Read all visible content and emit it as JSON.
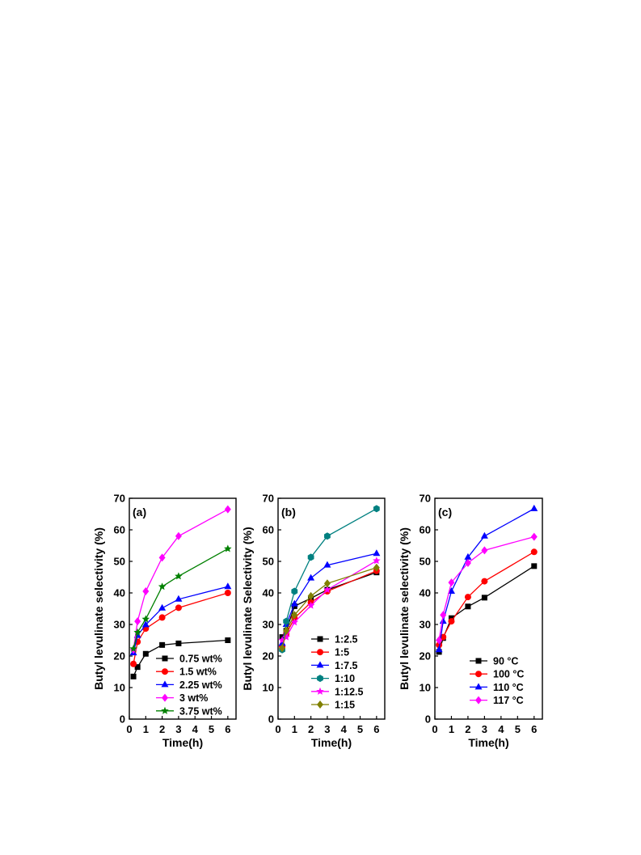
{
  "chart_data": [
    {
      "type": "line",
      "panel_label": "(a)",
      "xlabel": "Time(h)",
      "ylabel": "Butyl levulinate selectivity (%)",
      "xlim": [
        0,
        6.5
      ],
      "ylim": [
        0,
        70
      ],
      "xticks": [
        0,
        1,
        2,
        3,
        4,
        5,
        6
      ],
      "yticks": [
        0,
        10,
        20,
        30,
        40,
        50,
        60,
        70
      ],
      "legend_position": "bottom-right",
      "series": [
        {
          "name": "0.75 wt%",
          "color": "#000000",
          "marker": "square",
          "x": [
            0.25,
            0.5,
            1,
            2,
            3,
            6
          ],
          "y": [
            13.5,
            16.5,
            20.7,
            23.5,
            24.0,
            25.0
          ]
        },
        {
          "name": "1.5 wt%",
          "color": "#ff0000",
          "marker": "circle",
          "x": [
            0.25,
            0.5,
            1,
            2,
            3,
            6
          ],
          "y": [
            17.5,
            24.5,
            28.7,
            32.2,
            35.3,
            40.0
          ]
        },
        {
          "name": "2.25 wt%",
          "color": "#0000ff",
          "marker": "triangle",
          "x": [
            0.25,
            0.5,
            1,
            2,
            3,
            6
          ],
          "y": [
            21.0,
            26.5,
            29.9,
            35.2,
            38.0,
            42.0
          ]
        },
        {
          "name": "3 wt%",
          "color": "#ff00ff",
          "marker": "diamond",
          "x": [
            0.25,
            0.5,
            1,
            2,
            3,
            6
          ],
          "y": [
            22.0,
            31.0,
            40.5,
            51.2,
            58.0,
            66.5
          ]
        },
        {
          "name": "3.75 wt%",
          "color": "#008000",
          "marker": "star",
          "x": [
            0.25,
            0.5,
            1,
            2,
            3,
            6
          ],
          "y": [
            22.3,
            27.5,
            31.7,
            42.0,
            45.3,
            54.0
          ]
        }
      ]
    },
    {
      "type": "line",
      "panel_label": "(b)",
      "xlabel": "Time(h)",
      "ylabel": "Butyl levulinate Selectivity (%)",
      "xlim": [
        0,
        6.5
      ],
      "ylim": [
        0,
        70
      ],
      "xticks": [
        0,
        1,
        2,
        3,
        4,
        5,
        6
      ],
      "yticks": [
        0,
        10,
        20,
        30,
        40,
        50,
        60,
        70
      ],
      "legend_position": "bottom-center",
      "series": [
        {
          "name": "1:2.5",
          "color": "#000000",
          "marker": "square",
          "x": [
            0.25,
            0.5,
            1,
            2,
            3,
            6
          ],
          "y": [
            26.0,
            28.0,
            35.8,
            38.3,
            41.0,
            46.5
          ]
        },
        {
          "name": "1:5",
          "color": "#ff0000",
          "marker": "circle",
          "x": [
            0.25,
            0.5,
            1,
            2,
            3,
            6
          ],
          "y": [
            23.0,
            27.0,
            32.0,
            37.0,
            40.5,
            47.0
          ]
        },
        {
          "name": "1:7.5",
          "color": "#0000ff",
          "marker": "triangle",
          "x": [
            0.25,
            0.5,
            1,
            2,
            3,
            6
          ],
          "y": [
            24.0,
            30.0,
            36.5,
            44.7,
            48.8,
            52.5
          ]
        },
        {
          "name": "1:10",
          "color": "#008080",
          "marker": "hexagon",
          "x": [
            0.25,
            0.5,
            1,
            2,
            3,
            6
          ],
          "y": [
            22.0,
            31.0,
            40.5,
            51.3,
            58.0,
            66.7
          ]
        },
        {
          "name": "1:12.5",
          "color": "#ff00ff",
          "marker": "star",
          "x": [
            0.25,
            0.5,
            1,
            2,
            3,
            6
          ],
          "y": [
            25.0,
            26.0,
            30.7,
            36.0,
            41.0,
            50.2
          ]
        },
        {
          "name": "1:15",
          "color": "#808000",
          "marker": "diamond",
          "x": [
            0.25,
            0.5,
            1,
            2,
            3,
            6
          ],
          "y": [
            22.5,
            28.0,
            33.0,
            39.0,
            43.0,
            48.0
          ]
        }
      ]
    },
    {
      "type": "line",
      "panel_label": "(c)",
      "xlabel": "Time(h)",
      "ylabel": "Butyl levulinate selectivity (%)",
      "xlim": [
        0,
        6.5
      ],
      "ylim": [
        0,
        70
      ],
      "xticks": [
        0,
        1,
        2,
        3,
        4,
        5,
        6
      ],
      "yticks": [
        0,
        10,
        20,
        30,
        40,
        50,
        60,
        70
      ],
      "legend_position": "bottom-center",
      "series": [
        {
          "name": "90 °C",
          "color": "#000000",
          "marker": "square",
          "x": [
            0.25,
            0.5,
            1,
            2,
            3,
            6
          ],
          "y": [
            21.3,
            25.7,
            32.0,
            35.7,
            38.5,
            48.5
          ]
        },
        {
          "name": "100 °C",
          "color": "#ff0000",
          "marker": "circle",
          "x": [
            0.25,
            0.5,
            1,
            2,
            3,
            6
          ],
          "y": [
            23.5,
            26.0,
            31.0,
            38.7,
            43.7,
            53.0
          ]
        },
        {
          "name": "110 °C",
          "color": "#0000ff",
          "marker": "triangle",
          "x": [
            0.25,
            0.5,
            1,
            2,
            3,
            6
          ],
          "y": [
            22.0,
            31.0,
            40.5,
            51.3,
            58.0,
            66.7
          ]
        },
        {
          "name": "117 °C",
          "color": "#ff00ff",
          "marker": "diamond",
          "x": [
            0.25,
            0.5,
            1,
            2,
            3,
            6
          ],
          "y": [
            25.0,
            33.0,
            43.3,
            49.5,
            53.5,
            57.8
          ]
        }
      ]
    }
  ]
}
